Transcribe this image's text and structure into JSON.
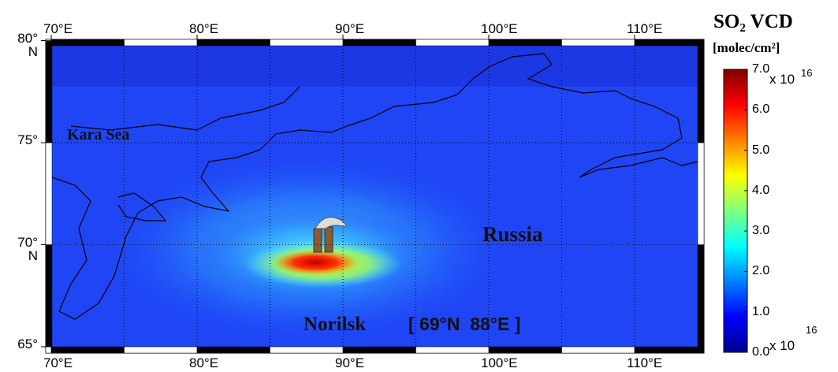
{
  "map": {
    "title": "SO₂ VCD",
    "units": "[molec/cm²]",
    "colorbar": {
      "lim": [
        0,
        7
      ],
      "ticks": [
        {
          "value": 0,
          "label": "0.0"
        },
        {
          "value": 1,
          "label": "1.0"
        },
        {
          "value": 2,
          "label": "2.0"
        },
        {
          "value": 3,
          "label": "3.0"
        },
        {
          "value": 4,
          "label": "4.0"
        },
        {
          "value": 5,
          "label": "5.0"
        },
        {
          "value": 6,
          "label": "6.0"
        },
        {
          "value": 7,
          "label": "7.0"
        }
      ],
      "multiplier": "x 10",
      "exponent": "16"
    },
    "lon_ticks": [
      {
        "value": 70,
        "label": "70°E"
      },
      {
        "value": 80,
        "label": "80°E"
      },
      {
        "value": 90,
        "label": "90°E"
      },
      {
        "value": 100,
        "label": "100°E"
      },
      {
        "value": 110,
        "label": "110°E"
      }
    ],
    "lat_ticks": [
      {
        "value": 80,
        "label": "80°\nN"
      },
      {
        "value": 75,
        "label": "75°"
      },
      {
        "value": 70,
        "label": "70°\nN"
      },
      {
        "value": 65,
        "label": "65°"
      }
    ],
    "places": {
      "sea": "Kara Sea",
      "country": "Russia",
      "city": "Norilsk",
      "coords": "[ 69°N  88°E ]"
    }
  }
}
